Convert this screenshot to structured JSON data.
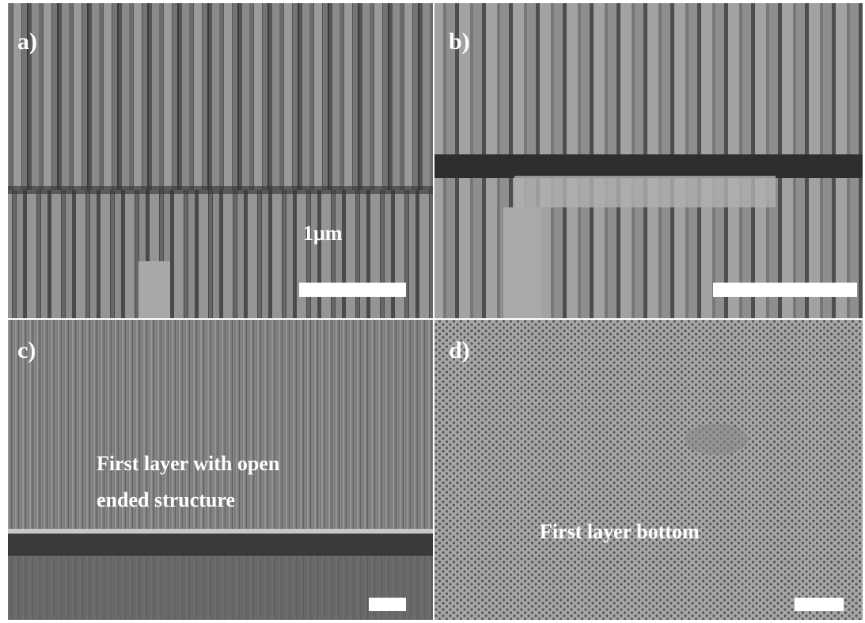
{
  "panels": [
    {
      "label": "a)",
      "scale_bar": "1μm"
    },
    {
      "label": "b)"
    },
    {
      "label": "c)",
      "caption": [
        "First layer with open",
        "ended structure"
      ]
    },
    {
      "label": "d)",
      "caption": [
        "First layer bottom"
      ]
    }
  ]
}
